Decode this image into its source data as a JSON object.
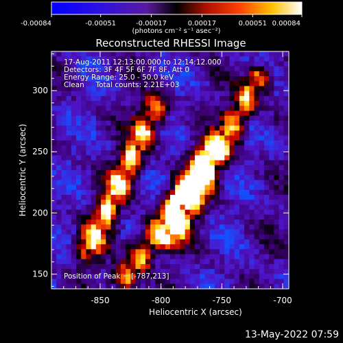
{
  "chart_data": {
    "type": "heatmap",
    "title": "Reconstructed RHESSI Image",
    "xlabel": "Heliocentric X (arcsec)",
    "ylabel": "Heliocentric Y (arcsec)",
    "xlim": [
      -890,
      -695
    ],
    "ylim": [
      138,
      332
    ],
    "xticks": [
      -850,
      -800,
      -750,
      -700
    ],
    "yticks": [
      150,
      200,
      250,
      300
    ],
    "colorbar": {
      "range": [
        -0.00084,
        0.00084
      ],
      "ticks": [
        -0.00084,
        -0.00051,
        -0.00017,
        0.00017,
        0.00051,
        0.00084
      ],
      "tick_labels": [
        "-0.00084",
        "-0.00051",
        "-0.00017",
        "0.00017",
        "0.00051",
        "0.00084"
      ],
      "units_label": "(photons cm⁻² s⁻¹ asec⁻²)",
      "colormap": "blue-purple-black-red-yellow-white"
    },
    "annotations": [
      "17-Aug-2011 12:13:00.000 to 12:14:12.000",
      "Detectors: 3F 4F 5F 6F 7F 8F, Att 0",
      "Energy Range: 25.0 - 50.0 keV",
      "Clean     Total counts: 2.21E+03"
    ],
    "peak_label": "Position of Peak = [-787,213]",
    "peak": {
      "x": -787,
      "y": 213
    },
    "emission_ridges": [
      {
        "from": [
          -860,
          170
        ],
        "to": [
          -805,
          285
        ]
      },
      {
        "from": [
          -830,
          145
        ],
        "to": [
          -760,
          250
        ]
      },
      {
        "from": [
          -790,
          180
        ],
        "to": [
          -720,
          310
        ]
      }
    ]
  },
  "footer": {
    "timestamp": "13-May-2022 07:59"
  }
}
